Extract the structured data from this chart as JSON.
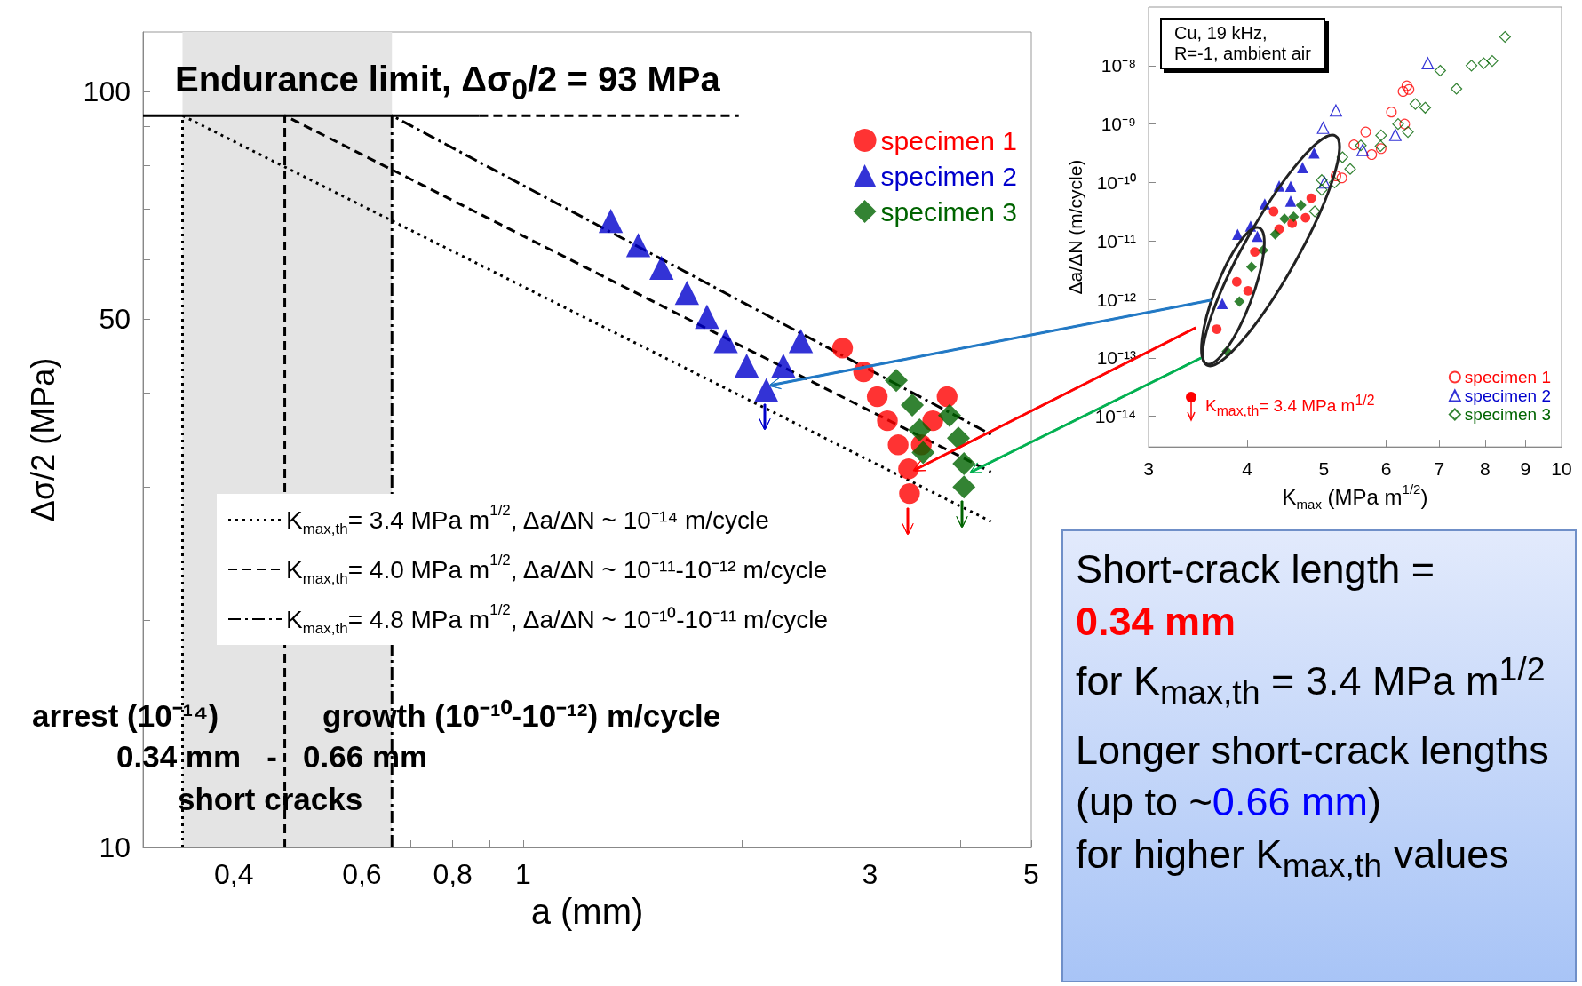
{
  "chart_data": [
    {
      "type": "scatter",
      "xlabel": "a (mm)",
      "ylabel": "Δσ/2 (MPa)",
      "log": "xy",
      "xlim": [
        0.3,
        5
      ],
      "ylim": [
        10,
        120
      ],
      "xticks": [
        {
          "value": 0.4,
          "label": "0,4"
        },
        {
          "value": 0.5,
          "label": null
        },
        {
          "value": 0.6,
          "label": "0,6"
        },
        {
          "value": 0.7,
          "label": null
        },
        {
          "value": 0.8,
          "label": "0,8"
        },
        {
          "value": 0.9,
          "label": null
        },
        1,
        {
          "value": 2,
          "label": null
        },
        3,
        {
          "value": 4,
          "label": null
        },
        5
      ],
      "yticks": [
        10,
        {
          "value": 20,
          "label": null
        },
        {
          "value": 30,
          "label": null
        },
        {
          "value": 40,
          "label": null
        },
        50,
        {
          "value": 60,
          "label": null
        },
        {
          "value": 70,
          "label": null
        },
        {
          "value": 80,
          "label": null
        },
        {
          "value": 90,
          "label": null
        },
        100
      ],
      "legend": "top right",
      "bands": [
        {
          "axis": "x",
          "from": 0.34,
          "to": 0.66,
          "color": "#e4e4e4"
        }
      ],
      "annotations": [
        "Endurance limit, Δσ$_{0}$/2 = 93 MPa",
        "arrest (10⁻¹⁴)",
        "growth (10⁻¹⁰-10⁻¹²) m/cycle",
        "0.34 mm   -   0.66 mm",
        "short cracks"
      ],
      "series": [
        {
          "type": "line",
          "color": "#000000",
          "line_style": "solid",
          "marker": "none",
          "x": [
            0.3,
            0.87
          ],
          "values": [
            93,
            93
          ]
        },
        {
          "type": "line",
          "color": "#000000",
          "line_style": "dashed",
          "marker": "none",
          "x": [
            0.87,
            1.98
          ],
          "values": [
            93,
            93
          ]
        },
        {
          "type": "line",
          "name": "K$_{max,th}$= 3.4 MPa m$^{1/2}$, Δa/ΔN ~ 10⁻¹⁴ m/cycle",
          "color": "#000000",
          "line_style": "dotted",
          "marker": "none",
          "x": [
            0.34,
            0.34,
            4.4
          ],
          "values": [
            10,
            93,
            27
          ]
        },
        {
          "type": "line",
          "name": "K$_{max,th}$= 4.0 MPa m$^{1/2}$, Δa/ΔN ~ 10⁻¹¹-10⁻¹² m/cycle",
          "color": "#000000",
          "line_style": "dashed",
          "marker": "none",
          "x": [
            0.47,
            0.47,
            4.4
          ],
          "values": [
            10,
            93,
            31.4
          ]
        },
        {
          "type": "line",
          "name": "K$_{max,th}$= 4.8 MPa m$^{1/2}$, Δa/ΔN ~ 10⁻¹⁰-10⁻¹¹ m/cycle",
          "color": "#000000",
          "line_style": "dashdot",
          "marker": "none",
          "x": [
            0.66,
            0.66,
            4.4
          ],
          "values": [
            10,
            93,
            35.2
          ]
        },
        {
          "name": "specimen 1",
          "color": "#ff0000",
          "marker": "circle",
          "x": [
            2.75,
            2.94,
            3.07,
            3.17,
            3.28,
            3.39,
            3.4,
            3.83,
            3.66,
            3.53
          ],
          "values": [
            45.8,
            42.6,
            39.5,
            36.7,
            34.1,
            31.7,
            29.4,
            39.5,
            36.7,
            34.1
          ]
        },
        {
          "name": "specimen 2",
          "color": "#0000cc",
          "marker": "triangle",
          "x": [
            1.32,
            1.44,
            1.55,
            1.68,
            1.79,
            1.9,
            2.03,
            2.28,
            2.41,
            2.16
          ],
          "values": [
            67.5,
            62.7,
            58.5,
            54.2,
            50.4,
            46.8,
            43.4,
            43.4,
            46.8,
            40.3
          ]
        },
        {
          "name": "specimen 3",
          "color": "#006400",
          "marker": "diamond",
          "x": [
            3.26,
            3.43,
            3.51,
            3.55,
            3.86,
            3.97,
            4.04,
            4.04
          ],
          "values": [
            41.5,
            38.5,
            35.7,
            33.3,
            37.3,
            34.8,
            32.2,
            30.0
          ]
        }
      ]
    },
    {
      "type": "scatter",
      "xlabel": "K$_{max}$ (MPa m$^{1/2}$)",
      "ylabel": "Δa/ΔN (m/cycle)",
      "log": "xy",
      "xlim": [
        3,
        10
      ],
      "ylim": [
        3e-15,
        1e-07
      ],
      "xticks": [
        3,
        4,
        5,
        6,
        7,
        8,
        9,
        10
      ],
      "yticks": [
        {
          "value": 1e-14,
          "label": "10⁻¹⁴"
        },
        {
          "value": 1e-13,
          "label": "10⁻¹³"
        },
        {
          "value": 1e-12,
          "label": "10⁻¹²"
        },
        {
          "value": 1e-11,
          "label": "10⁻¹¹"
        },
        {
          "value": 1e-10,
          "label": "10⁻¹⁰"
        },
        {
          "value": 1e-09,
          "label": "10⁻⁹"
        },
        {
          "value": 1e-08,
          "label": "10⁻⁸"
        }
      ],
      "legend": "bottom right",
      "annotations": [
        "Cu, 19 kHz,\nR=-1, ambient air",
        "K$_{max,th}$= 3.4 MPa m$^{1/2}$"
      ],
      "series": [
        {
          "color": "#ff0000",
          "marker": "circle",
          "x": [
            3.66,
            3.88,
            4.01,
            4.09,
            4.32,
            4.39,
            4.56,
            4.74,
            4.82
          ],
          "values": [
            3.1e-13,
            2e-12,
            1.4e-12,
            6.5e-12,
            3.2e-11,
            1.6e-11,
            2e-11,
            2.5e-11,
            5.4e-11
          ]
        },
        {
          "color": "#0000cc",
          "marker": "triangle",
          "x": [
            3.72,
            3.89,
            4.04,
            4.12,
            4.21,
            4.39,
            4.54,
            4.54,
            4.7,
            4.86
          ],
          "values": [
            8.5e-13,
            1.3e-11,
            1.8e-11,
            1.2e-11,
            4.3e-11,
            8.7e-11,
            8.6e-11,
            4.8e-11,
            1.8e-10,
            3.2e-10
          ]
        },
        {
          "color": "#006400",
          "marker": "diamond",
          "x": [
            3.77,
            3.91,
            4.05,
            4.19,
            4.34,
            4.46,
            4.58,
            4.68
          ],
          "values": [
            1.3e-13,
            9.2e-13,
            3.6e-12,
            6.9e-12,
            1.3e-11,
            2.4e-11,
            2.6e-11,
            4.1e-11
          ]
        },
        {
          "name": "specimen 1",
          "color": "#ff0000",
          "marker": "circle",
          "x": [
            5.18,
            5.27,
            5.46,
            5.65,
            5.75,
            5.91,
            6.09,
            6.33,
            6.3,
            6.37,
            6.41
          ],
          "values": [
            1.3e-10,
            1.2e-10,
            4.4e-10,
            7.3e-10,
            3e-10,
            3.8e-10,
            1.6e-09,
            1e-09,
            3.6e-09,
            4.5e-09,
            3.9e-09
          ]
        },
        {
          "name": "specimen 2",
          "color": "#0000cc",
          "marker": "triangle",
          "x": [
            4.99,
            5.18,
            5.01,
            5.6,
            6.16,
            6.77
          ],
          "values": [
            8.6e-10,
            1.7e-09,
            1e-10,
            3.6e-10,
            6.5e-10,
            1.1e-08
          ]
        },
        {
          "name": "specimen 3",
          "color": "#006400",
          "marker": "diamond",
          "x": [
            8.48,
            7.69,
            7.97,
            8.17,
            7.02,
            7.36,
            6.53,
            6.72,
            6.21,
            5.91,
            6.39,
            5.9,
            5.57,
            5.28,
            5.4,
            4.97,
            5.16,
            4.97,
            4.87
          ],
          "values": [
            3.1e-08,
            1e-08,
            1.1e-08,
            1.2e-08,
            8.2e-09,
            4e-09,
            2.2e-09,
            1.9e-09,
            1e-09,
            6.4e-10,
            7.3e-10,
            4.2e-10,
            4.3e-10,
            2.7e-10,
            1.7e-10,
            1.1e-10,
            1e-10,
            7.5e-11,
            3.2e-11
          ]
        }
      ]
    },
    {
      "type": "other",
      "annotations": [
        "Short-crack length =",
        "0.34 mm",
        "for K$_{max,th}$ = 3.4 MPa m$^{1/2}$",
        "Longer short-crack lengths",
        "(up to ~",
        "0.66 mm",
        ")",
        "for higher K$_{max,th}$ values"
      ]
    }
  ]
}
